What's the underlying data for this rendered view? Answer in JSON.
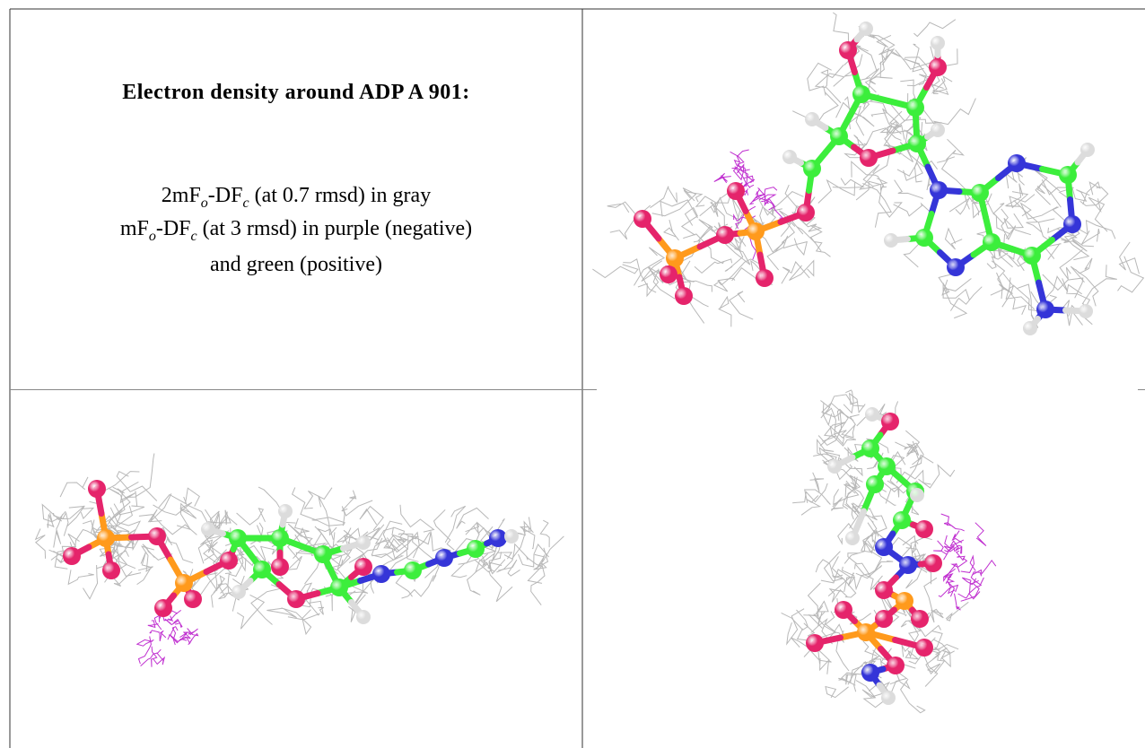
{
  "title": "Electron density around ADP A 901:",
  "legend": [
    [
      {
        "text": "2mF"
      },
      {
        "sub": "o"
      },
      {
        "text": "-DF"
      },
      {
        "sub": "c"
      },
      {
        "text": " (at 0.7 rmsd) in gray"
      }
    ],
    [
      {
        "text": "mF"
      },
      {
        "sub": "o"
      },
      {
        "text": "-DF"
      },
      {
        "sub": "c"
      },
      {
        "text": " (at 3 rmsd) in purple (negative)"
      }
    ],
    [
      {
        "text": "and green (positive)"
      }
    ]
  ]
}
